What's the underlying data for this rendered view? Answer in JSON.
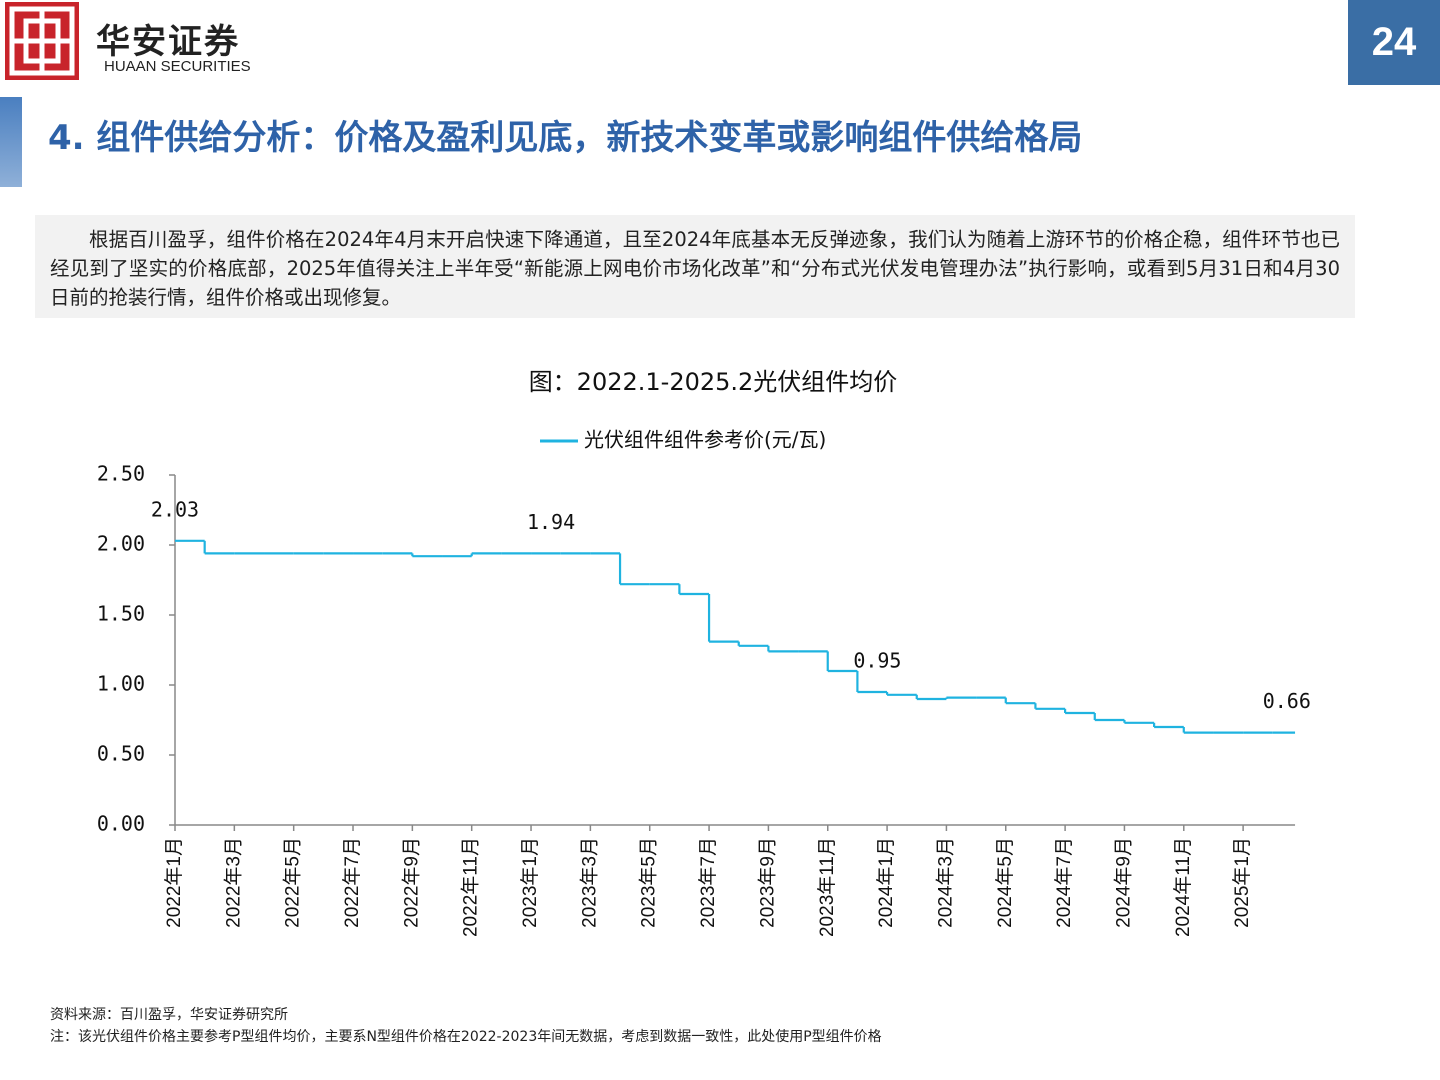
{
  "header": {
    "brand": "华安证券",
    "brand_en": "HUAAN SECURITIES",
    "page": "24"
  },
  "title": "4. 组件供给分析：价格及盈利见底，新技术变革或影响组件供给格局",
  "summary": "根据百川盈孚，组件价格在2024年4月末开启快速下降通道，且至2024年底基本无反弹迹象，我们认为随着上游环节的价格企稳，组件环节也已经见到了坚实的价格底部，2025年值得关注上半年受“新能源上网电价市场化改革”和“分布式光伏发电管理办法”执行影响，或看到5月31日和4月30日前的抢装行情，组件价格或出现修复。",
  "chart_data": {
    "type": "line",
    "title": "图：2022.1-2025.2光伏组件均价",
    "categories": [
      "2022年1月",
      null,
      "2022年3月",
      null,
      "2022年5月",
      null,
      "2022年7月",
      null,
      "2022年9月",
      null,
      "2022年11月",
      null,
      "2023年1月",
      null,
      "2023年3月",
      null,
      "2023年5月",
      null,
      "2023年7月",
      null,
      "2023年9月",
      null,
      "2023年11月",
      null,
      "2024年1月",
      null,
      "2024年3月",
      null,
      "2024年5月",
      null,
      "2024年7月",
      null,
      "2024年9月",
      null,
      "2024年11月",
      null,
      "2025年1月",
      null
    ],
    "series": [
      {
        "name": "光伏组件组件参考价(元/瓦)",
        "color": "#1fb3e0",
        "values": [
          2.03,
          1.94,
          1.94,
          1.94,
          1.94,
          1.94,
          1.94,
          1.94,
          1.92,
          1.92,
          1.94,
          1.94,
          1.94,
          1.94,
          1.94,
          1.72,
          1.72,
          1.65,
          1.31,
          1.28,
          1.24,
          1.24,
          1.1,
          0.95,
          0.93,
          0.9,
          0.91,
          0.91,
          0.87,
          0.83,
          0.8,
          0.75,
          0.73,
          0.7,
          0.66,
          0.66,
          0.66,
          0.66
        ],
        "value_labels": [
          "2.03",
          null,
          null,
          null,
          null,
          null,
          null,
          null,
          null,
          null,
          null,
          null,
          "1.94",
          null,
          null,
          null,
          null,
          null,
          null,
          null,
          null,
          null,
          null,
          "0.95",
          null,
          null,
          null,
          null,
          null,
          null,
          null,
          null,
          null,
          null,
          null,
          null,
          null,
          "0.66"
        ]
      }
    ],
    "ylim": [
      0,
      2.5
    ],
    "yticks": [
      {
        "value": 0,
        "label": "0.00"
      },
      {
        "value": 0.5,
        "label": "0.50"
      },
      {
        "value": 1,
        "label": "1.00"
      },
      {
        "value": 1.5,
        "label": "1.50"
      },
      {
        "value": 2,
        "label": "2.00"
      },
      {
        "value": 2.5,
        "label": "2.50"
      }
    ],
    "legend": "top"
  },
  "footer": {
    "source": "资料来源：百川盈孚，华安证券研究所",
    "note": "注：该光伏组件价格主要参考P型组件均价，主要系N型组件价格在2022-2023年间无数据，考虑到数据一致性，此处使用P型组件价格"
  }
}
